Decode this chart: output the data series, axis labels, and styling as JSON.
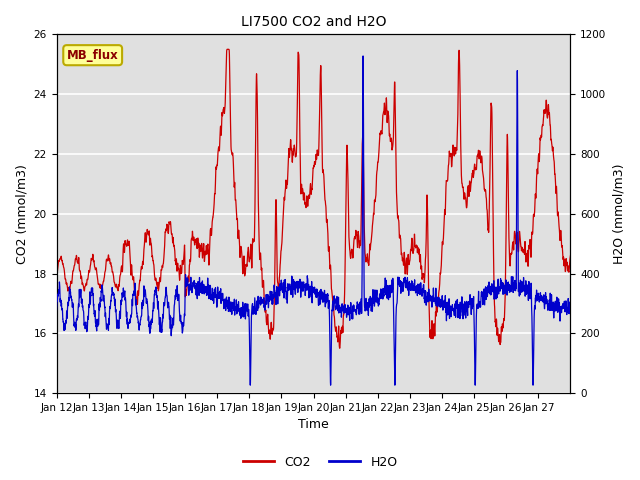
{
  "title": "LI7500 CO2 and H2O",
  "xlabel": "Time",
  "ylabel_left": "CO2 (mmol/m3)",
  "ylabel_right": "H2O (mmol/m3)",
  "ylim_left": [
    14,
    26
  ],
  "ylim_right": [
    0,
    1200
  ],
  "yticks_left": [
    14,
    16,
    18,
    20,
    22,
    24,
    26
  ],
  "yticks_right": [
    0,
    200,
    400,
    600,
    800,
    1000,
    1200
  ],
  "xtick_labels": [
    "Jan 12",
    "Jan 13",
    "Jan 14",
    "Jan 15",
    "Jan 16",
    "Jan 17",
    "Jan 18",
    "Jan 19",
    "Jan 20",
    "Jan 21",
    "Jan 22",
    "Jan 23",
    "Jan 24",
    "Jan 25",
    "Jan 26",
    "Jan 27"
  ],
  "legend_labels": [
    "CO2",
    "H2O"
  ],
  "co2_color": "#cc0000",
  "h2o_color": "#0000cc",
  "plot_bg_color": "#e0e0e0",
  "grid_color": "#ffffff",
  "annotation_text": "MB_flux",
  "annotation_bg": "#ffff99",
  "annotation_border": "#bbaa00"
}
